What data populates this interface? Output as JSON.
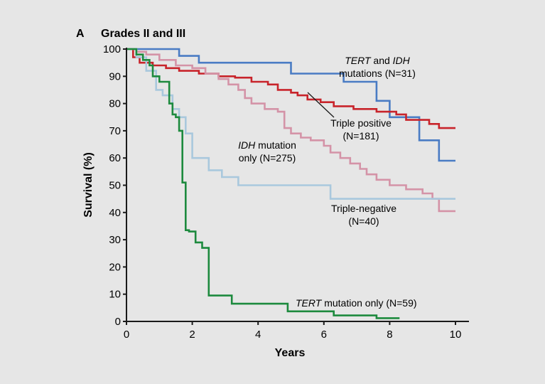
{
  "chart_data": {
    "type": "line",
    "panel_letter": "A",
    "title": "Grades II and III",
    "xlabel": "Years",
    "ylabel": "Survival (%)",
    "xlim": [
      0,
      10
    ],
    "ylim": [
      0,
      100
    ],
    "x_ticks": [
      0,
      2,
      4,
      6,
      8,
      10
    ],
    "y_ticks": [
      0,
      10,
      20,
      30,
      40,
      50,
      60,
      70,
      80,
      90,
      100
    ],
    "grid": false,
    "series": [
      {
        "key": "tert-idh",
        "color": "#4a7cc4",
        "x": [
          0,
          1.6,
          1.6,
          2.2,
          2.2,
          3.5,
          3.5,
          5.0,
          5.0,
          5.9,
          5.9,
          6.6,
          6.6,
          7.6,
          7.6,
          8.0,
          8.0,
          8.9,
          8.9,
          9.5,
          9.5,
          10.0
        ],
        "y": [
          100,
          100,
          97.5,
          97.5,
          95,
          95,
          95,
          95,
          91,
          91,
          91,
          91,
          88,
          88,
          81,
          81,
          75,
          75,
          66.5,
          66.5,
          59,
          59
        ]
      },
      {
        "key": "triple-positive",
        "color": "#c8242b",
        "x": [
          0,
          0.2,
          0.2,
          0.4,
          0.4,
          0.8,
          0.8,
          1.2,
          1.2,
          1.6,
          1.6,
          2.2,
          2.2,
          2.8,
          2.8,
          3.3,
          3.3,
          3.8,
          3.8,
          4.3,
          4.3,
          4.6,
          4.6,
          5.0,
          5.0,
          5.2,
          5.2,
          5.5,
          5.5,
          5.9,
          5.9,
          6.3,
          6.3,
          6.9,
          6.9,
          7.6,
          7.6,
          8.2,
          8.2,
          8.5,
          8.5,
          9.2,
          9.2,
          9.5,
          9.5,
          10.0
        ],
        "y": [
          100,
          100,
          97,
          97,
          95,
          95,
          94,
          94,
          93,
          93,
          92,
          92,
          91,
          91,
          90,
          90,
          89.5,
          89.5,
          88,
          88,
          87,
          87,
          85,
          85,
          84,
          84,
          83,
          83,
          81.5,
          81.5,
          80.5,
          80.5,
          79,
          79,
          78,
          78,
          77,
          77,
          76,
          76,
          74,
          74,
          72.5,
          72.5,
          71,
          71
        ]
      },
      {
        "key": "idh-only",
        "color": "#d493a7",
        "x": [
          0,
          0.3,
          0.3,
          0.6,
          0.6,
          1.0,
          1.0,
          1.5,
          1.5,
          2.0,
          2.0,
          2.4,
          2.4,
          2.8,
          2.8,
          3.1,
          3.1,
          3.4,
          3.4,
          3.6,
          3.6,
          3.8,
          3.8,
          4.2,
          4.2,
          4.6,
          4.6,
          4.8,
          4.8,
          5.0,
          5.0,
          5.3,
          5.3,
          5.6,
          5.6,
          6.0,
          6.0,
          6.2,
          6.2,
          6.5,
          6.5,
          6.8,
          6.8,
          7.1,
          7.1,
          7.3,
          7.3,
          7.6,
          7.6,
          8.0,
          8.0,
          8.5,
          8.5,
          9.0,
          9.0,
          9.3,
          9.3,
          9.5,
          9.5,
          10.0
        ],
        "y": [
          100,
          100,
          99,
          99,
          98,
          98,
          96,
          96,
          94,
          94,
          93,
          93,
          91,
          91,
          89,
          89,
          87,
          87,
          85,
          85,
          82,
          82,
          80,
          80,
          78,
          78,
          77,
          77,
          71,
          71,
          69,
          69,
          67.5,
          67.5,
          66.5,
          66.5,
          64.5,
          64.5,
          62,
          62,
          60,
          60,
          58,
          58,
          56,
          56,
          54,
          54,
          52,
          52,
          50,
          50,
          48.5,
          48.5,
          47,
          47,
          45,
          45,
          40.5,
          40.5
        ]
      },
      {
        "key": "triple-negative",
        "color": "#a9c8dd",
        "x": [
          0,
          0.3,
          0.3,
          0.6,
          0.6,
          0.9,
          0.9,
          1.1,
          1.1,
          1.4,
          1.4,
          1.6,
          1.6,
          1.8,
          1.8,
          2.0,
          2.0,
          2.5,
          2.5,
          2.9,
          2.9,
          3.4,
          3.4,
          6.2,
          6.2,
          10.0
        ],
        "y": [
          100,
          100,
          97,
          97,
          92,
          92,
          85,
          85,
          83,
          83,
          78,
          78,
          75,
          75,
          69,
          69,
          60,
          60,
          55.5,
          55.5,
          53,
          53,
          50,
          50,
          45,
          45
        ]
      },
      {
        "key": "tert-only",
        "color": "#1d8a3e",
        "x": [
          0,
          0.3,
          0.3,
          0.5,
          0.5,
          0.7,
          0.7,
          0.8,
          0.8,
          1.0,
          1.0,
          1.3,
          1.3,
          1.4,
          1.4,
          1.5,
          1.5,
          1.6,
          1.6,
          1.7,
          1.7,
          1.8,
          1.8,
          1.9,
          1.9,
          2.1,
          2.1,
          2.3,
          2.3,
          2.5,
          2.5,
          3.2,
          3.2,
          4.9,
          4.9,
          6.3,
          6.3,
          7.6,
          7.6,
          8.3
        ],
        "y": [
          100,
          100,
          98,
          98,
          96,
          96,
          94,
          94,
          90,
          90,
          88,
          88,
          80,
          80,
          76,
          76,
          75,
          75,
          70,
          70,
          51,
          51,
          33.5,
          33.5,
          33,
          33,
          29,
          29,
          27,
          27,
          9.5,
          9.5,
          6.5,
          6.5,
          3.7,
          3.7,
          2.2,
          2.2,
          1.2,
          1.2
        ]
      }
    ],
    "annotations": [
      {
        "key": "tert-idh",
        "lines": [
          [
            {
              "text": "TERT",
              "italic": true
            },
            {
              "text": " and "
            },
            {
              "text": "IDH",
              "italic": true
            }
          ],
          [
            {
              "text": "mutations (N=31)"
            }
          ]
        ]
      },
      {
        "key": "triple-positive",
        "lines": [
          [
            {
              "text": "Triple positive"
            }
          ],
          [
            {
              "text": "(N=181)"
            }
          ]
        ]
      },
      {
        "key": "idh-only",
        "lines": [
          [
            {
              "text": "IDH",
              "italic": true
            },
            {
              "text": " mutation"
            }
          ],
          [
            {
              "text": "only (N=275)"
            }
          ]
        ]
      },
      {
        "key": "triple-negative",
        "lines": [
          [
            {
              "text": "Triple-negative"
            }
          ],
          [
            {
              "text": "(N=40)"
            }
          ]
        ]
      },
      {
        "key": "tert-only",
        "lines": [
          [
            {
              "text": "TERT",
              "italic": true
            },
            {
              "text": " mutation only (N=59)"
            }
          ]
        ]
      }
    ]
  }
}
